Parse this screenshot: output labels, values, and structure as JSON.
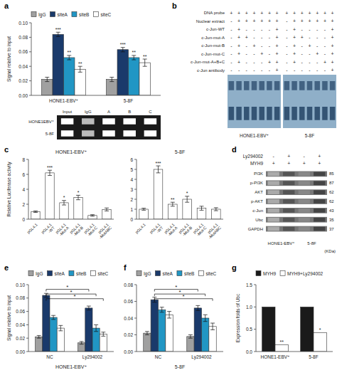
{
  "chart_data": [
    {
      "type": "bar",
      "panel_label": "a",
      "categories": [
        "HONE1-EBV⁺",
        "5-8F"
      ],
      "ylabel": "Signal relative to input",
      "ylim": [
        0,
        0.1
      ],
      "yticks": [
        {
          "value": 0,
          "label": "0.00"
        },
        0.02,
        0.04,
        0.06,
        0.08,
        {
          "value": 0.1,
          "label": "0.10"
        }
      ],
      "grid": false,
      "legend": "top",
      "series": [
        {
          "name": "IgG",
          "color": "#a0a0a0",
          "values": [
            0.022,
            0.022
          ],
          "errors": [
            0.003,
            0.003
          ]
        },
        {
          "name": "siteA",
          "color": "#1a3a6b",
          "values": [
            0.084,
            0.063
          ],
          "errors": [
            0.003,
            0.003
          ],
          "stars": [
            "***",
            "***"
          ]
        },
        {
          "name": "siteB",
          "color": "#2196c4",
          "values": [
            0.052,
            0.052
          ],
          "errors": [
            0.003,
            0.003
          ],
          "stars": [
            "**",
            "**"
          ]
        },
        {
          "name": "siteC",
          "color": "#ffffff",
          "values": [
            0.036,
            0.045
          ],
          "errors": [
            0.004,
            0.005
          ],
          "stars": [
            "**",
            "**"
          ]
        }
      ]
    },
    {
      "type": "gel",
      "columns": [
        "Input",
        "IgG",
        "A",
        "B",
        "C"
      ],
      "categories": [
        "HONE1EBV⁺",
        "5-8F"
      ]
    },
    {
      "type": "table",
      "panel_label": "b",
      "color": "#8fafc8",
      "categories": [
        "DNA probe",
        "Nuclear extract",
        "c-Jun-WT",
        "c-Jun-mut-A",
        "c-Jun-mut-B",
        "c-Jun-mut-C",
        "c-Jun-mut-A+B+C",
        "c-Jun antibody"
      ],
      "series": [
        {
          "name": "HONE1-EBV⁺",
          "values": [
            [
              "+",
              "+",
              "+",
              "+",
              "+",
              "+",
              "+"
            ],
            [
              "-",
              "+",
              "+",
              "+",
              "+",
              "+",
              "+"
            ],
            [
              "-",
              "+",
              "-",
              "-",
              "-",
              "-",
              "+"
            ],
            [
              "-",
              "+",
              "+",
              "-",
              "-",
              "-",
              "+"
            ],
            [
              "-",
              "+",
              "-",
              "+",
              "-",
              "-",
              "+"
            ],
            [
              "-",
              "+",
              "-",
              "-",
              "+",
              "-",
              "+"
            ],
            [
              "-",
              "+",
              "-",
              "-",
              "-",
              "+",
              "+"
            ],
            [
              "-",
              "-",
              "-",
              "-",
              "-",
              "-",
              "+"
            ]
          ]
        },
        {
          "name": "5-8F",
          "values": [
            [
              "+",
              "+",
              "+",
              "+",
              "+",
              "+",
              "+"
            ],
            [
              "-",
              "+",
              "+",
              "+",
              "+",
              "+",
              "+"
            ],
            [
              "-",
              "+",
              "-",
              "-",
              "-",
              "-",
              "+"
            ],
            [
              "-",
              "+",
              "+",
              "-",
              "-",
              "-",
              "+"
            ],
            [
              "-",
              "+",
              "-",
              "+",
              "-",
              "-",
              "+"
            ],
            [
              "-",
              "+",
              "-",
              "-",
              "+",
              "-",
              "+"
            ],
            [
              "-",
              "+",
              "-",
              "-",
              "-",
              "+",
              "+"
            ],
            [
              "-",
              "-",
              "-",
              "-",
              "-",
              "-",
              "+"
            ]
          ]
        }
      ]
    },
    {
      "type": "bar",
      "panel_label": "c",
      "title": "HONE1-EBV⁺",
      "categories": [
        "pGL4.1",
        "pGL4.1\n-WT",
        "pGL4.1\n-Mut-A",
        "pGL4.1\n-Mut-B",
        "pGL4.1\n-Mut-C",
        "pGL4.1\n-MutABC"
      ],
      "values": [
        1.0,
        6.2,
        2.2,
        2.9,
        0.5,
        1.3
      ],
      "errors": [
        0.1,
        0.35,
        0.3,
        0.3,
        0.1,
        0.2
      ],
      "stars": [
        null,
        "***",
        "*",
        "*",
        null,
        null
      ],
      "color": "#ffffff",
      "ylabel": "Relative Luciferase activity",
      "ylim": [
        0,
        8
      ],
      "yticks": [
        0,
        2,
        4,
        6,
        8
      ],
      "grid": false
    },
    {
      "type": "bar",
      "title": "5-8F",
      "categories": [
        "pGL4.1",
        "pGL4.1\n-WT",
        "pGL4.1\n-Mut-A",
        "pGL4.1\n-Mut-B",
        "pGL4.1\n-Mut-C",
        "pGL4.1\n-MutABC"
      ],
      "values": [
        1.0,
        5.0,
        1.5,
        2.0,
        1.1,
        1.0
      ],
      "errors": [
        0.1,
        0.35,
        0.2,
        0.3,
        0.2,
        0.15
      ],
      "stars": [
        null,
        "***",
        "**",
        "*",
        null,
        null
      ],
      "color": "#ffffff",
      "ylim": [
        0,
        6
      ],
      "yticks": [
        0,
        1,
        2,
        3,
        4,
        5,
        6
      ],
      "grid": false
    },
    {
      "type": "blot",
      "panel_label": "d",
      "conditions": [
        {
          "name": "Ly294002",
          "values": [
            "-",
            "+",
            "-",
            "+"
          ]
        },
        {
          "name": "MYH9",
          "values": [
            "+",
            "+",
            "+",
            "+"
          ]
        }
      ],
      "categories": [
        "PI3K",
        "p-PI3K",
        "AKT",
        "p-AKT",
        "c-Jun",
        "Ubc",
        "GAPDH"
      ],
      "values": [
        85,
        87,
        62,
        62,
        43,
        35,
        37
      ],
      "cell_lines": [
        "HONE1-EBV⁺",
        "5-8F"
      ],
      "unit_label": "(KDa)"
    },
    {
      "type": "bar",
      "panel_label": "e",
      "categories": [
        "NC",
        "Ly294002"
      ],
      "xlabel": "HONE1-EBV⁺",
      "ylabel": "Signal relative to input",
      "ylim": [
        0,
        0.1
      ],
      "yticks": [
        {
          "value": 0,
          "label": "0.00"
        },
        0.02,
        0.04,
        0.06,
        0.08,
        {
          "value": 0.1,
          "label": "0.10"
        }
      ],
      "grid": false,
      "legend": "top",
      "series": [
        {
          "name": "IgG",
          "color": "#a0a0a0",
          "values": [
            0.022,
            0.013
          ],
          "errors": [
            0.002,
            0.002
          ]
        },
        {
          "name": "siteA",
          "color": "#1a3a6b",
          "values": [
            0.084,
            0.065
          ],
          "errors": [
            0.003,
            0.003
          ]
        },
        {
          "name": "siteB",
          "color": "#2196c4",
          "values": [
            0.051,
            0.035
          ],
          "errors": [
            0.003,
            0.005
          ]
        },
        {
          "name": "siteC",
          "color": "#ffffff",
          "values": [
            0.035,
            0.026
          ],
          "errors": [
            0.004,
            0.003
          ]
        }
      ],
      "annotations": [
        {
          "text": "*",
          "from": [
            1,
            0
          ],
          "to": [
            1,
            1
          ],
          "y": 0.093
        },
        {
          "text": "*",
          "from": [
            1,
            0
          ],
          "to": [
            2,
            1
          ],
          "y": 0.086
        },
        {
          "text": "*",
          "from": [
            1,
            0
          ],
          "to": [
            3,
            1
          ],
          "y": 0.079
        }
      ]
    },
    {
      "type": "bar",
      "panel_label": "f",
      "categories": [
        "NC",
        "Ly294002"
      ],
      "xlabel": "5-8F",
      "ylim": [
        0,
        0.08
      ],
      "yticks": [
        {
          "value": 0,
          "label": "0.00"
        },
        0.02,
        0.04,
        0.06,
        0.08
      ],
      "grid": false,
      "legend": "top",
      "series": [
        {
          "name": "IgG",
          "color": "#a0a0a0",
          "values": [
            0.022,
            0.018
          ],
          "errors": [
            0.002,
            0.002
          ]
        },
        {
          "name": "siteA",
          "color": "#1a3a6b",
          "values": [
            0.062,
            0.052
          ],
          "errors": [
            0.003,
            0.003
          ]
        },
        {
          "name": "siteB",
          "color": "#2196c4",
          "values": [
            0.05,
            0.04
          ],
          "errors": [
            0.003,
            0.004
          ]
        },
        {
          "name": "siteC",
          "color": "#ffffff",
          "values": [
            0.044,
            0.03
          ],
          "errors": [
            0.004,
            0.004
          ]
        }
      ],
      "annotations": [
        {
          "text": "*",
          "from": [
            1,
            0
          ],
          "to": [
            1,
            1
          ],
          "y": 0.0744
        },
        {
          "text": "*",
          "from": [
            1,
            0
          ],
          "to": [
            2,
            1
          ],
          "y": 0.0688
        },
        {
          "text": "*",
          "from": [
            1,
            0
          ],
          "to": [
            3,
            1
          ],
          "y": 0.0632
        }
      ]
    },
    {
      "type": "bar",
      "panel_label": "g",
      "categories": [
        "HONE1-EBV⁺",
        "5-8F"
      ],
      "ylabel": "Expression folds of Ubc",
      "ylim": [
        0,
        1.5
      ],
      "yticks": [
        {
          "value": 0,
          "label": "0.0"
        },
        0.5,
        {
          "value": 1,
          "label": "1.0"
        },
        1.5
      ],
      "grid": false,
      "legend": "top",
      "series": [
        {
          "name": "MYH9",
          "color": "#1a1a1a",
          "values": [
            1.0,
            1.0
          ]
        },
        {
          "name": "MYH9+Ly294002",
          "color": "#ffffff",
          "values": [
            0.15,
            0.42
          ],
          "stars": [
            "**",
            "*"
          ]
        }
      ]
    }
  ]
}
